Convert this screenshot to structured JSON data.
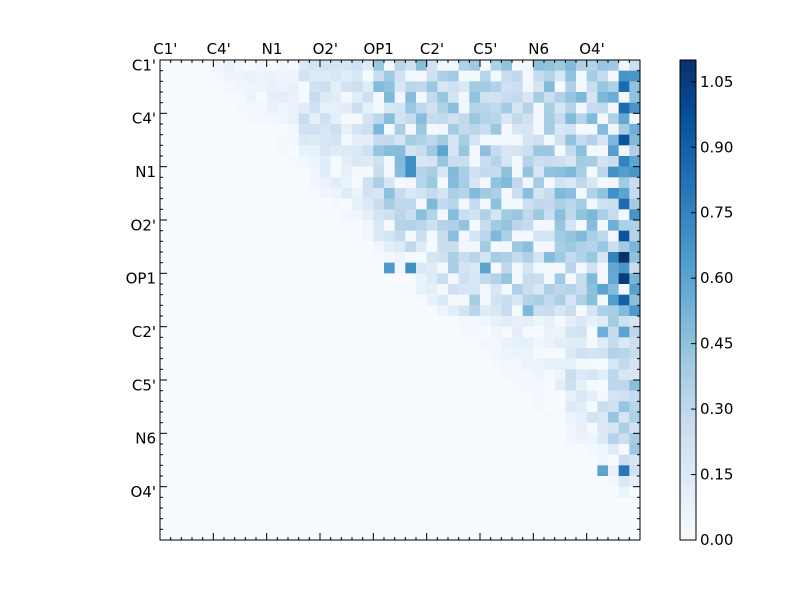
{
  "chart_data": {
    "type": "heatmap",
    "title": "",
    "xlabel": "",
    "ylabel": "",
    "x_tick_labels": [
      "C1'",
      "C4'",
      "N1",
      "O2'",
      "OP1",
      "C2'",
      "C5'",
      "N6",
      "O4'"
    ],
    "y_tick_labels": [
      "C1'",
      "C4'",
      "N1",
      "O2'",
      "OP1",
      "C2'",
      "C5'",
      "N6",
      "O4'"
    ],
    "x_tick_label_position": "top",
    "grid": false,
    "n_rows": 45,
    "n_cols": 45,
    "color_scale": "Blues",
    "colors": {
      "low": "#f7fbff",
      "mid": "#6baed6",
      "high": "#08306b"
    },
    "colorbar": {
      "min": 0.0,
      "max": 1.1,
      "tick_values": [
        0.0,
        0.15,
        0.3,
        0.45,
        0.6,
        0.75,
        0.9,
        1.05
      ],
      "tick_labels": [
        "0.00",
        "0.15",
        "0.30",
        "0.45",
        "0.60",
        "0.75",
        "0.90",
        "1.05"
      ]
    },
    "strong_cells": [
      {
        "row": 2,
        "col": 43,
        "value": 0.85
      },
      {
        "row": 4,
        "col": 43,
        "value": 0.85
      },
      {
        "row": 7,
        "col": 43,
        "value": 0.95
      },
      {
        "row": 9,
        "col": 43,
        "value": 0.75
      },
      {
        "row": 9,
        "col": 23,
        "value": 0.7
      },
      {
        "row": 10,
        "col": 23,
        "value": 0.7
      },
      {
        "row": 8,
        "col": 26,
        "value": 0.6
      },
      {
        "row": 13,
        "col": 43,
        "value": 0.85
      },
      {
        "row": 16,
        "col": 43,
        "value": 0.95
      },
      {
        "row": 18,
        "col": 43,
        "value": 1.1
      },
      {
        "row": 18,
        "col": 42,
        "value": 0.75
      },
      {
        "row": 20,
        "col": 43,
        "value": 1.05
      },
      {
        "row": 22,
        "col": 43,
        "value": 0.9
      },
      {
        "row": 21,
        "col": 41,
        "value": 0.6
      },
      {
        "row": 25,
        "col": 41,
        "value": 0.55
      },
      {
        "row": 25,
        "col": 43,
        "value": 0.6
      },
      {
        "row": 38,
        "col": 43,
        "value": 0.8
      },
      {
        "row": 38,
        "col": 41,
        "value": 0.6
      },
      {
        "row": 19,
        "col": 21,
        "value": 0.65
      },
      {
        "row": 19,
        "col": 23,
        "value": 0.7
      },
      {
        "row": 19,
        "col": 30,
        "value": 0.6
      }
    ]
  }
}
